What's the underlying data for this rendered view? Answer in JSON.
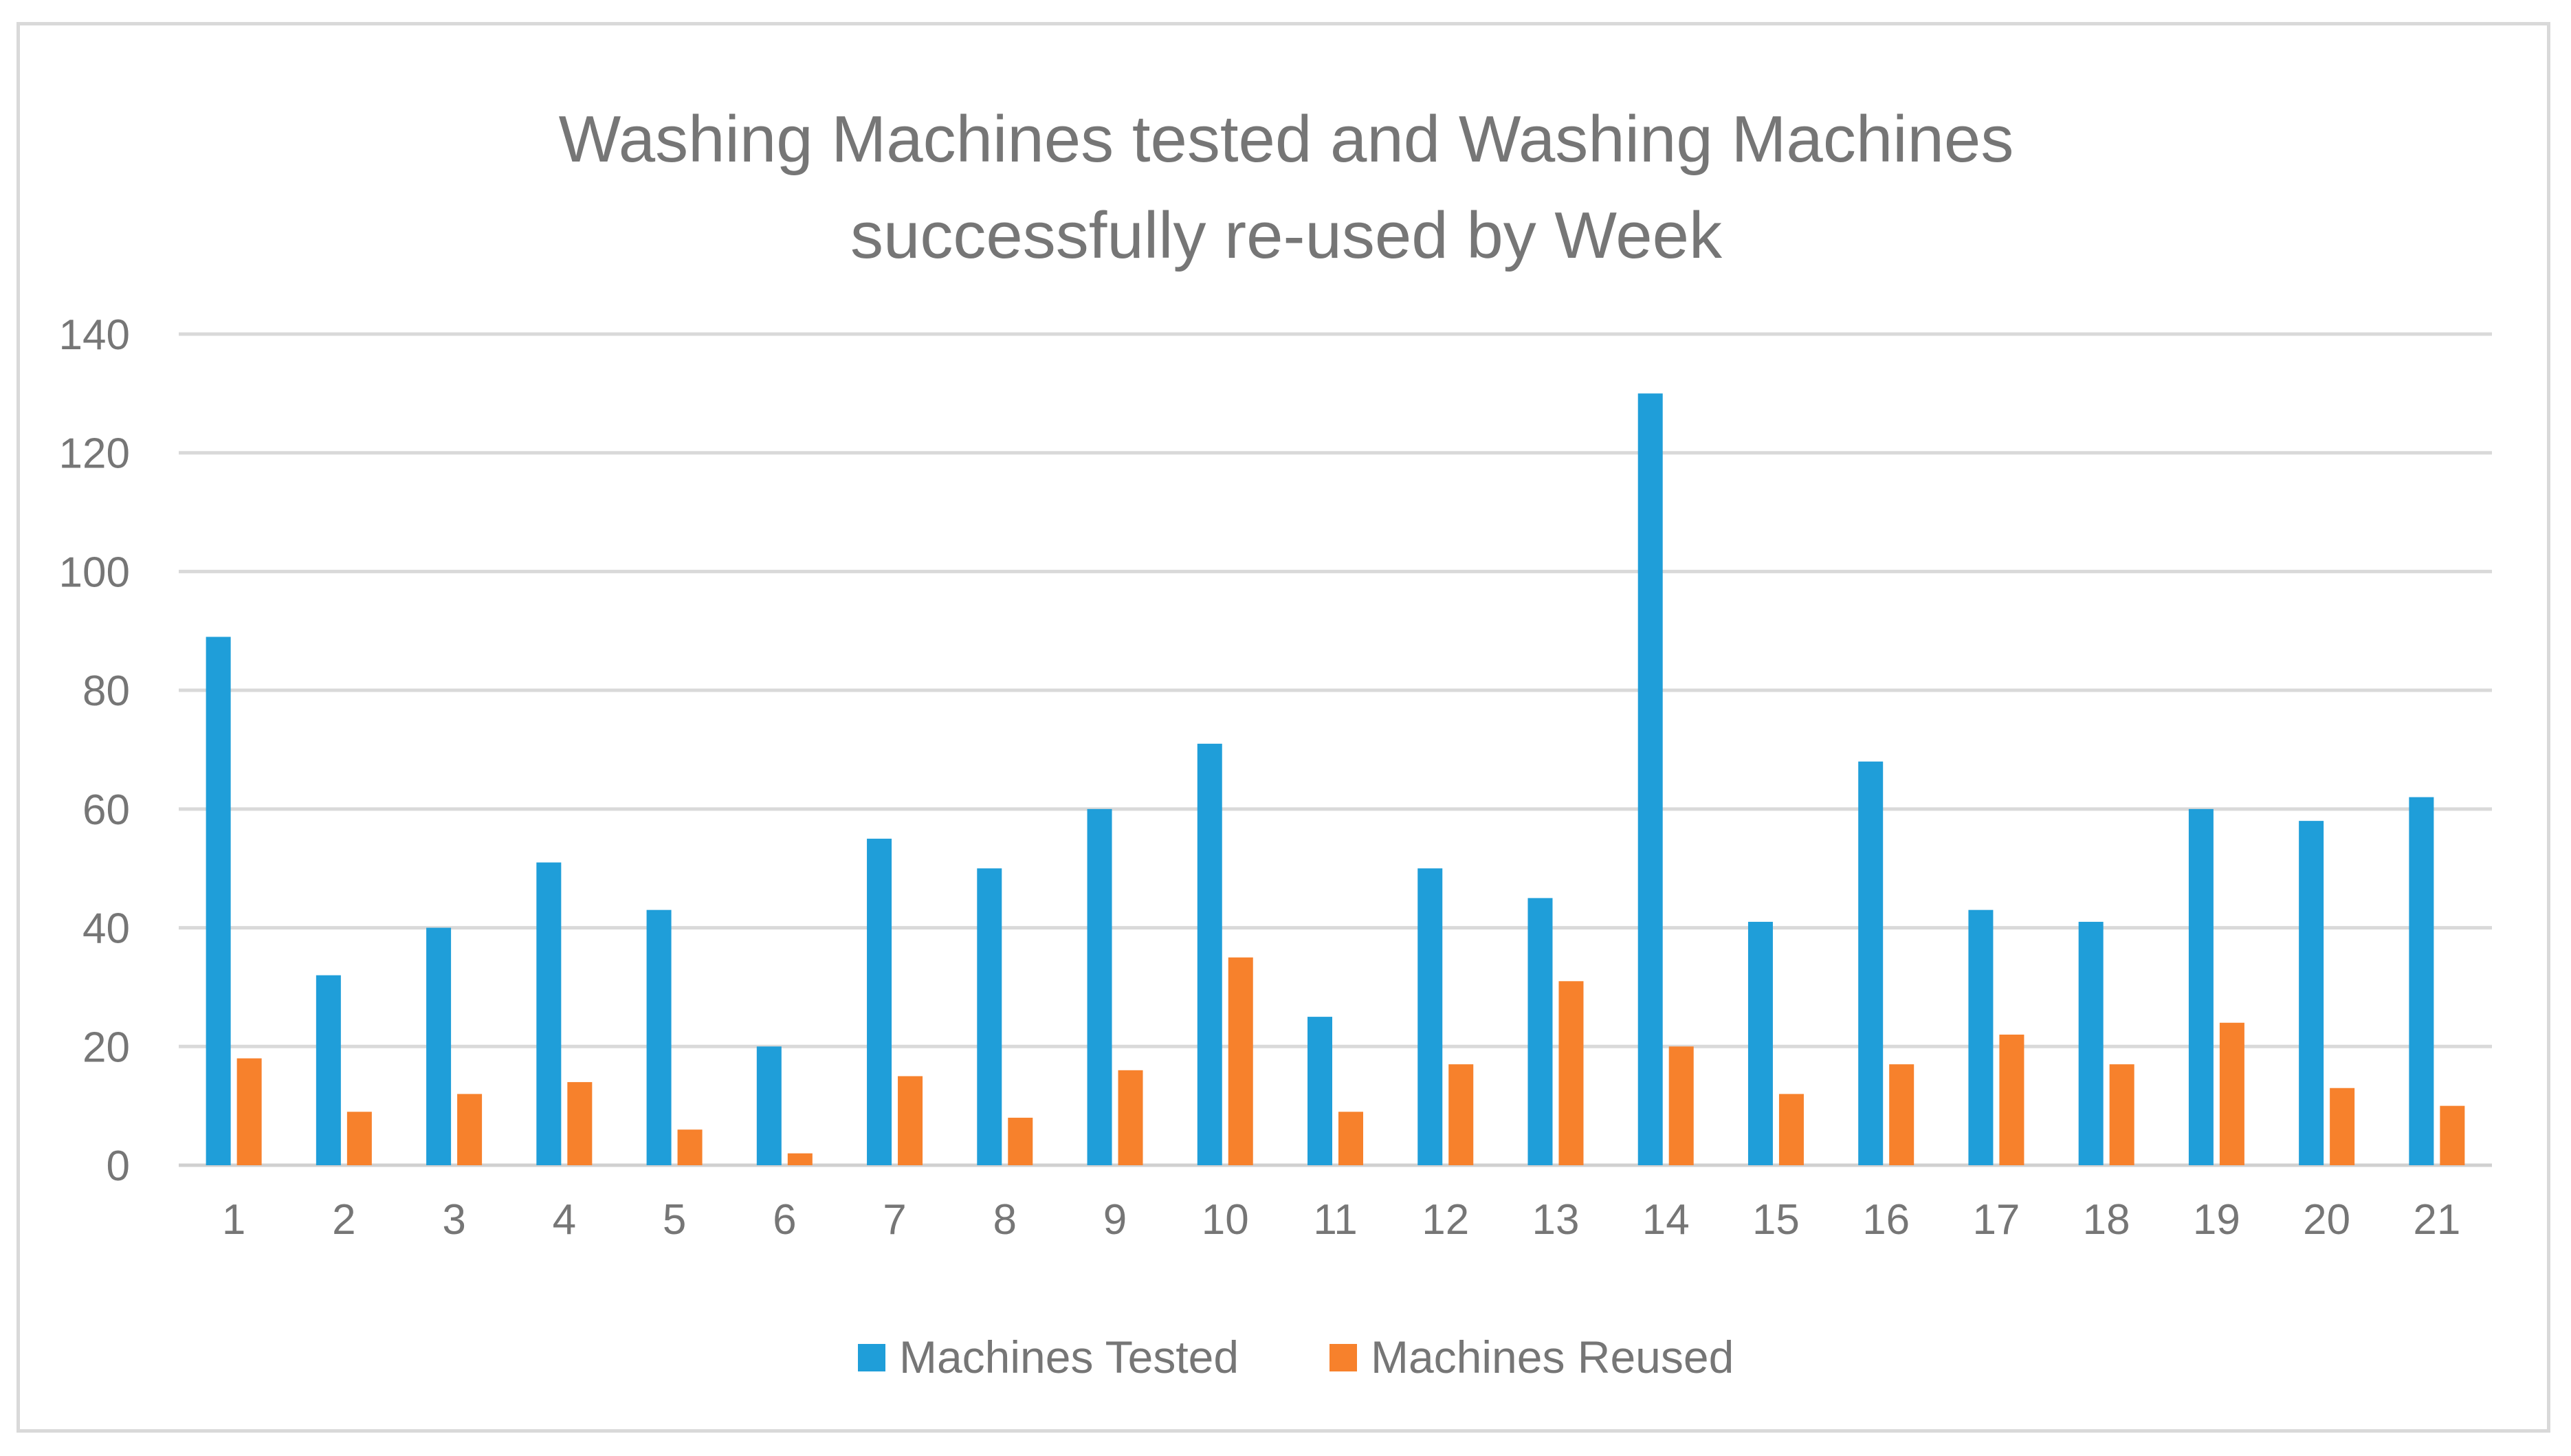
{
  "chart_data": {
    "type": "bar",
    "title": "Washing Machines tested and Washing Machines successfully re-used by Week",
    "title_lines": [
      "Washing Machines tested and Washing Machines",
      "successfully re-used by Week"
    ],
    "xlabel": "",
    "ylabel": "",
    "categories": [
      "1",
      "2",
      "3",
      "4",
      "5",
      "6",
      "7",
      "8",
      "9",
      "10",
      "11",
      "12",
      "13",
      "14",
      "15",
      "16",
      "17",
      "18",
      "19",
      "20",
      "21"
    ],
    "series": [
      {
        "name": "Machines Tested",
        "color": "#1f9ed9",
        "values": [
          89,
          32,
          40,
          51,
          43,
          20,
          55,
          50,
          60,
          71,
          25,
          50,
          45,
          130,
          41,
          68,
          43,
          41,
          60,
          58,
          62
        ]
      },
      {
        "name": "Machines Reused",
        "color": "#f7812c",
        "values": [
          18,
          9,
          12,
          14,
          6,
          2,
          15,
          8,
          16,
          35,
          9,
          17,
          31,
          20,
          12,
          17,
          22,
          17,
          24,
          13,
          10
        ]
      }
    ],
    "ylim": [
      0,
      140
    ],
    "yticks": [
      0,
      20,
      40,
      60,
      80,
      100,
      120,
      140
    ],
    "grid": true,
    "legend": "bottom"
  }
}
